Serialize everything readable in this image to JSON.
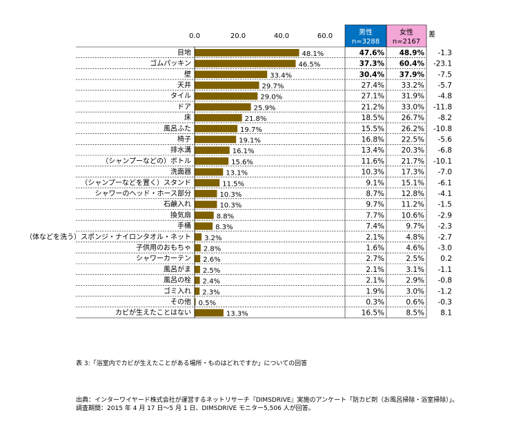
{
  "chart_data": {
    "type": "bar",
    "orientation": "horizontal",
    "xlim": [
      0,
      60
    ],
    "xticks": [
      "0.0",
      "20.0",
      "40.0",
      "60.0"
    ],
    "categories": [
      "目地",
      "ゴムパッキン",
      "壁",
      "天井",
      "タイル",
      "ドア",
      "床",
      "風呂ふた",
      "椅子",
      "排水溝",
      "（シャンプーなどの）ボトル",
      "洗面器",
      "（シャンプーなどを置く）スタンド",
      "シャワーのヘッド・ホース部分",
      "石鹸入れ",
      "換気扇",
      "手桶",
      "（体などを洗う）スポンジ・ナイロンタオル・ネット",
      "子供用のおもちゃ",
      "シャワーカーテン",
      "風呂がま",
      "風呂の栓",
      "ゴミ入れ",
      "その他",
      "カビが生えたことはない"
    ],
    "values": [
      48.1,
      46.5,
      33.4,
      29.7,
      29.0,
      25.9,
      21.8,
      19.7,
      19.1,
      16.1,
      15.6,
      13.1,
      11.5,
      10.3,
      10.3,
      8.8,
      8.3,
      3.2,
      2.8,
      2.6,
      2.5,
      2.4,
      2.3,
      0.5,
      13.3
    ],
    "value_labels": [
      "48.1%",
      "46.5%",
      "33.4%",
      "29.7%",
      "29.0%",
      "25.9%",
      "21.8%",
      "19.7%",
      "19.1%",
      "16.1%",
      "15.6%",
      "13.1%",
      "11.5%",
      "10.3%",
      "10.3%",
      "8.8%",
      "8.3%",
      "3.2%",
      "2.8%",
      "2.6%",
      "2.5%",
      "2.4%",
      "2.3%",
      "0.5%",
      "13.3%"
    ],
    "bar_color": "#7f6000",
    "grid": false,
    "table": {
      "male_header": "男性",
      "male_n": "n=3288",
      "female_header": "女性",
      "female_n": "n=2167",
      "diff_header": "差",
      "male_header_color": "#0070c0",
      "female_header_color": "#f4a6d7",
      "male": [
        "47.6%",
        "37.3%",
        "30.4%",
        "27.4%",
        "27.1%",
        "21.2%",
        "18.5%",
        "15.5%",
        "16.8%",
        "13.4%",
        "11.6%",
        "10.3%",
        "9.1%",
        "8.7%",
        "9.7%",
        "7.7%",
        "7.4%",
        "2.1%",
        "1.6%",
        "2.7%",
        "2.1%",
        "2.1%",
        "1.9%",
        "0.3%",
        "16.5%"
      ],
      "female": [
        "48.9%",
        "60.4%",
        "37.9%",
        "33.2%",
        "31.9%",
        "33.0%",
        "26.7%",
        "26.2%",
        "22.5%",
        "20.3%",
        "21.7%",
        "17.3%",
        "15.1%",
        "12.8%",
        "11.2%",
        "10.6%",
        "9.7%",
        "4.8%",
        "4.6%",
        "2.5%",
        "3.1%",
        "2.9%",
        "3.0%",
        "0.6%",
        "8.5%"
      ],
      "diff": [
        "-1.3",
        "-23.1",
        "-7.5",
        "-5.7",
        "-4.8",
        "-11.8",
        "-8.2",
        "-10.8",
        "-5.6",
        "-6.8",
        "-10.1",
        "-7.0",
        "-6.1",
        "-4.1",
        "-1.5",
        "-2.9",
        "-2.3",
        "-2.7",
        "-3.0",
        "0.2",
        "-1.1",
        "-0.8",
        "-1.2",
        "-0.3",
        "8.1"
      ],
      "bold_rows": [
        0,
        1,
        2
      ]
    }
  },
  "caption": "表 3:「浴室内でカビが生えたことがある場所・ものはどれですか」についての回答",
  "source_line1": "出典：インターワイヤード株式会社が運営するネットリサーチ『DIMSDRIVE』実施のアンケート「防カビ剤（お風呂掃除・浴室掃除）」。",
  "source_line2": "調査期間：2015 年 4 月 17 日～5 月 1 日、DIMSDRIVE モニター5,506 人が回答。"
}
